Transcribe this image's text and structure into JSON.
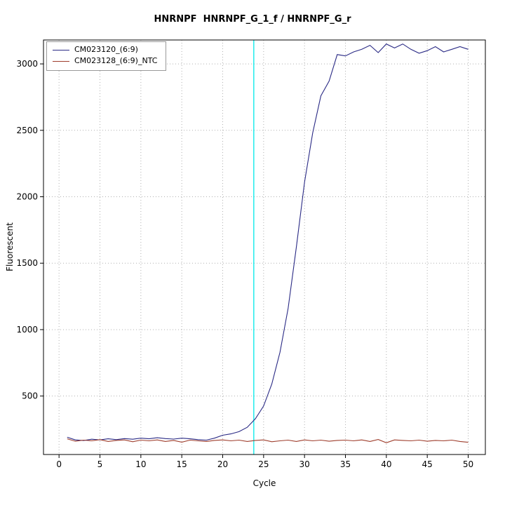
{
  "chart_data": {
    "type": "line",
    "title": "HNRNPF  HNRNPF_G_1_f / HNRNPF_G_r",
    "xlabel": "Cycle",
    "ylabel": "Fluorescent",
    "xlim": [
      -1.9,
      52.1
    ],
    "ylim": [
      60,
      3180
    ],
    "xticks": [
      0,
      5,
      10,
      15,
      20,
      25,
      30,
      35,
      40,
      45,
      50
    ],
    "yticks": [
      500,
      1000,
      1500,
      2000,
      2500,
      3000
    ],
    "grid": "dotted",
    "grid_color": "#b0b0b0",
    "legend_position": "top-left",
    "threshold_line": {
      "x": 23.8,
      "color": "#00eaea"
    },
    "cycles": [
      1,
      2,
      3,
      4,
      5,
      6,
      7,
      8,
      9,
      10,
      11,
      12,
      13,
      14,
      15,
      16,
      17,
      18,
      19,
      20,
      21,
      22,
      23,
      24,
      25,
      26,
      27,
      28,
      29,
      30,
      31,
      32,
      33,
      34,
      35,
      36,
      37,
      38,
      39,
      40,
      41,
      42,
      43,
      44,
      45,
      46,
      47,
      48,
      49,
      50
    ],
    "series": [
      {
        "name": "CM023120_(6:9)",
        "color": "#2a2a85",
        "values": [
          190,
          170,
          165,
          175,
          170,
          178,
          172,
          180,
          175,
          183,
          178,
          186,
          180,
          176,
          183,
          178,
          172,
          168,
          183,
          205,
          215,
          232,
          265,
          330,
          425,
          590,
          830,
          1160,
          1620,
          2110,
          2480,
          2760,
          2870,
          3070,
          3060,
          3090,
          3110,
          3140,
          3085,
          3150,
          3120,
          3150,
          3110,
          3080,
          3100,
          3130,
          3090,
          3110,
          3130,
          3110
        ]
      },
      {
        "name": "CM023128_(6:9)_NTC",
        "color": "#9e3d2c",
        "values": [
          178,
          160,
          168,
          163,
          172,
          158,
          166,
          170,
          156,
          168,
          163,
          170,
          158,
          166,
          153,
          168,
          163,
          158,
          166,
          170,
          163,
          168,
          158,
          166,
          170,
          156,
          163,
          168,
          158,
          170,
          163,
          168,
          160,
          166,
          168,
          163,
          170,
          158,
          173,
          148,
          170,
          166,
          163,
          168,
          160,
          166,
          163,
          168,
          158,
          152
        ]
      }
    ]
  }
}
